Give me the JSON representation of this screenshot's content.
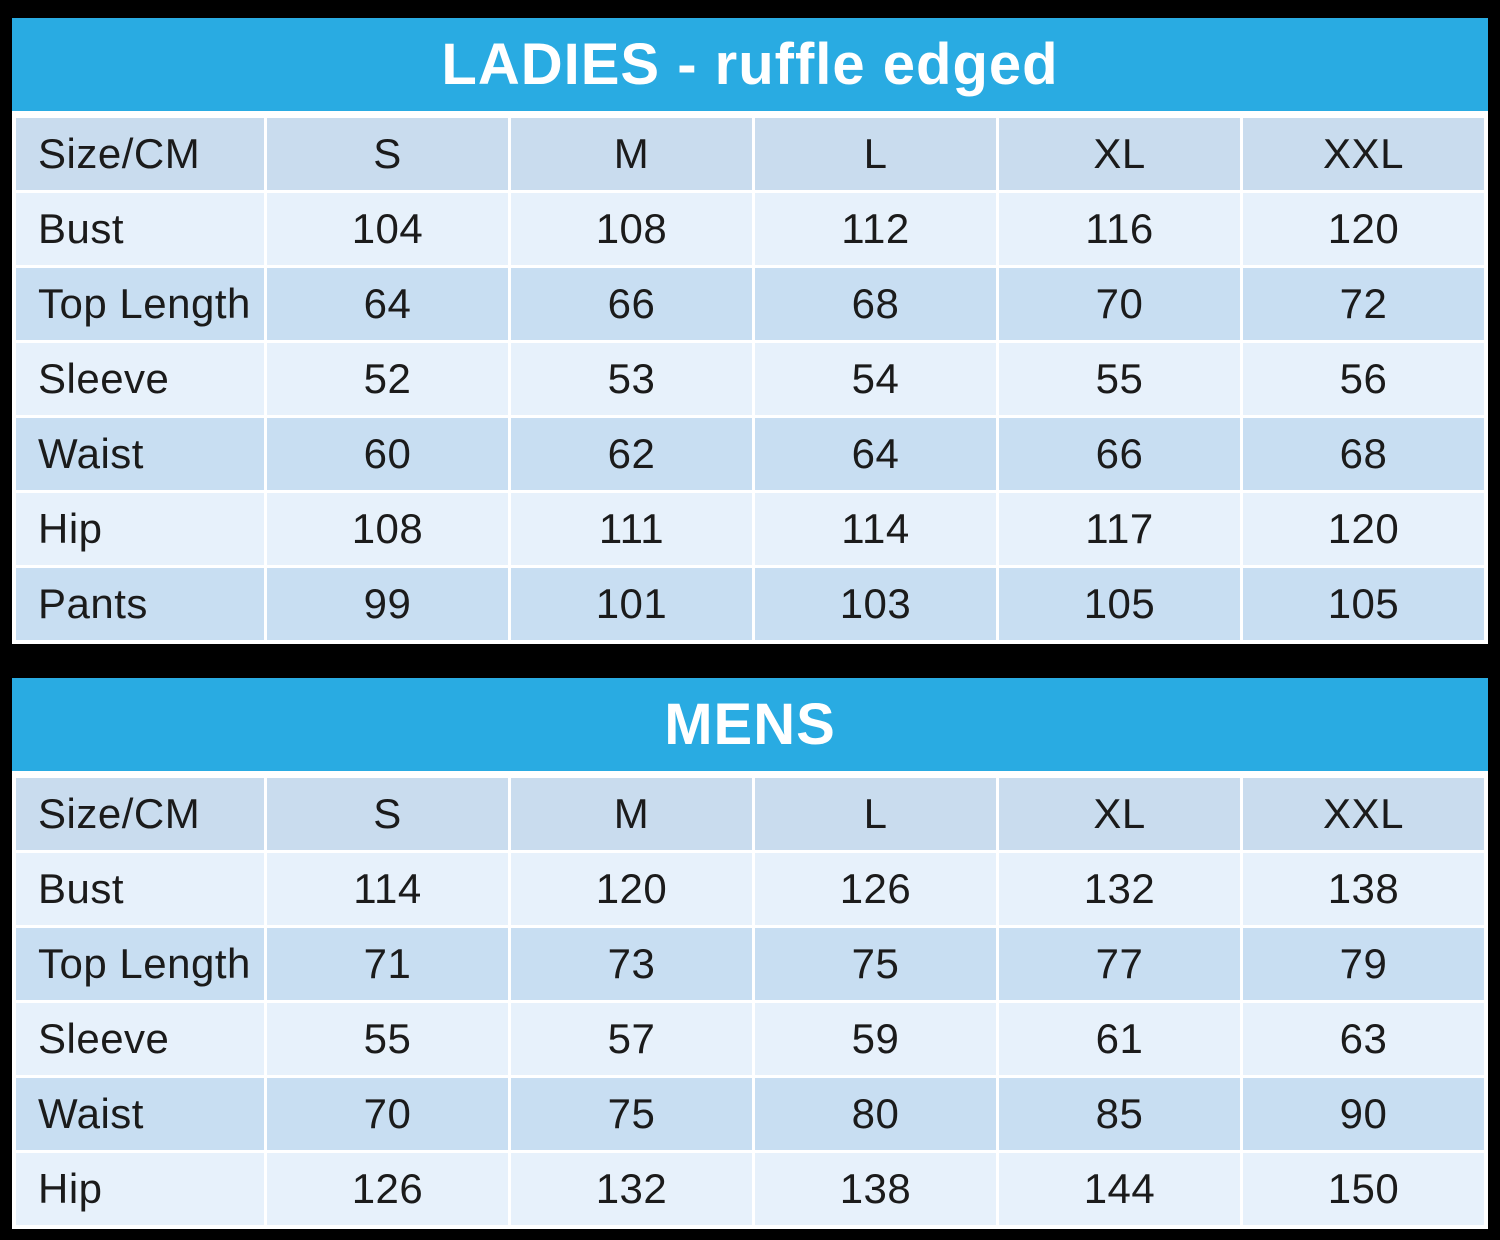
{
  "colors": {
    "page_bg": "#000000",
    "title_bar": "#29abe2",
    "title_text": "#ffffff",
    "row_head": "#c9dcee",
    "row_dark": "#c8def2",
    "row_light": "#e7f1fb",
    "cell_text": "#1b1b1b",
    "border": "#ffffff"
  },
  "chart_data": [
    {
      "type": "table",
      "title": "LADIES - ruffle edged",
      "columns": [
        "Size/CM",
        "S",
        "M",
        "L",
        "XL",
        "XXL"
      ],
      "rows": [
        {
          "label": "Bust",
          "values": [
            "104",
            "108",
            "112",
            "116",
            "120"
          ]
        },
        {
          "label": "Top Length",
          "values": [
            "64",
            "66",
            "68",
            "70",
            "72"
          ]
        },
        {
          "label": "Sleeve",
          "values": [
            "52",
            "53",
            "54",
            "55",
            "56"
          ]
        },
        {
          "label": "Waist",
          "values": [
            "60",
            "62",
            "64",
            "66",
            "68"
          ]
        },
        {
          "label": "Hip",
          "values": [
            "108",
            "111",
            "114",
            "117",
            "120"
          ]
        },
        {
          "label": "Pants",
          "values": [
            "99",
            "101",
            "103",
            "105",
            "105"
          ]
        }
      ]
    },
    {
      "type": "table",
      "title": "MENS",
      "columns": [
        "Size/CM",
        "S",
        "M",
        "L",
        "XL",
        "XXL"
      ],
      "rows": [
        {
          "label": "Bust",
          "values": [
            "114",
            "120",
            "126",
            "132",
            "138"
          ]
        },
        {
          "label": "Top Length",
          "values": [
            "71",
            "73",
            "75",
            "77",
            "79"
          ]
        },
        {
          "label": "Sleeve",
          "values": [
            "55",
            "57",
            "59",
            "61",
            "63"
          ]
        },
        {
          "label": "Waist",
          "values": [
            "70",
            "75",
            "80",
            "85",
            "90"
          ]
        },
        {
          "label": "Hip",
          "values": [
            "126",
            "132",
            "138",
            "144",
            "150"
          ]
        }
      ]
    }
  ]
}
